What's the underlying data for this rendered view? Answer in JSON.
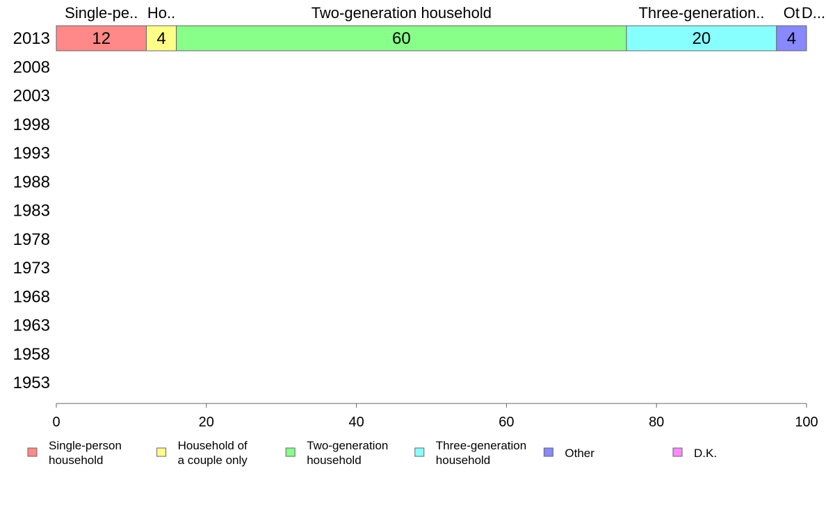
{
  "chart_data": {
    "type": "bar",
    "orientation": "horizontal",
    "stacked": true,
    "categories": [
      "2013",
      "2008",
      "2003",
      "1998",
      "1993",
      "1988",
      "1983",
      "1978",
      "1973",
      "1968",
      "1963",
      "1958",
      "1953"
    ],
    "series": [
      {
        "name": "Single-person household",
        "short_label": "Single-pe..",
        "color": "#ff8888",
        "values": [
          12,
          null,
          null,
          null,
          null,
          null,
          null,
          null,
          null,
          null,
          null,
          null,
          null
        ]
      },
      {
        "name": "Household of a couple only",
        "short_label": "Ho..",
        "color": "#ffff88",
        "values": [
          4,
          null,
          null,
          null,
          null,
          null,
          null,
          null,
          null,
          null,
          null,
          null,
          null
        ]
      },
      {
        "name": "Two-generation household",
        "short_label": "Two-generation household",
        "color": "#88ff88",
        "values": [
          60,
          null,
          null,
          null,
          null,
          null,
          null,
          null,
          null,
          null,
          null,
          null,
          null
        ]
      },
      {
        "name": "Three-generation household",
        "short_label": "Three-generation..",
        "color": "#88ffff",
        "values": [
          20,
          null,
          null,
          null,
          null,
          null,
          null,
          null,
          null,
          null,
          null,
          null,
          null
        ]
      },
      {
        "name": "Other",
        "short_label": "Ot",
        "color": "#8888ff",
        "values": [
          4,
          null,
          null,
          null,
          null,
          null,
          null,
          null,
          null,
          null,
          null,
          null,
          null
        ]
      },
      {
        "name": "D.K.",
        "short_label": "D...",
        "color": "#ff88ff",
        "values": [
          0,
          null,
          null,
          null,
          null,
          null,
          null,
          null,
          null,
          null,
          null,
          null,
          null
        ]
      }
    ],
    "data_labels": [
      "12",
      "4",
      "60",
      "20",
      "4",
      ""
    ],
    "legend": [
      {
        "lines": [
          "Single-person",
          "household"
        ],
        "color": "#ff8888"
      },
      {
        "lines": [
          "Household of",
          "a couple only"
        ],
        "color": "#ffff88"
      },
      {
        "lines": [
          "Two-generation",
          "household"
        ],
        "color": "#88ff88"
      },
      {
        "lines": [
          "Three-generation",
          "household"
        ],
        "color": "#88ffff"
      },
      {
        "lines": [
          "Other"
        ],
        "color": "#8888ff"
      },
      {
        "lines": [
          "D.K."
        ],
        "color": "#ff88ff"
      }
    ],
    "legend_position": "bottom",
    "xlim": [
      0,
      100
    ],
    "xticks": [
      0,
      20,
      40,
      60,
      80,
      100
    ],
    "grid": false,
    "title": "",
    "xlabel": "",
    "ylabel": ""
  }
}
